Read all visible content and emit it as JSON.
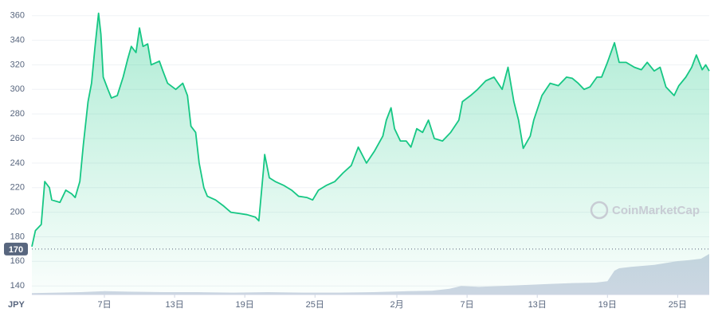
{
  "chart_data": {
    "type": "line",
    "currency": "JPY",
    "watermark": "CoinMarketCap",
    "reference_price": 170,
    "reference_label": "170",
    "grid": true,
    "ylim": [
      133,
      365
    ],
    "yticks": [
      140,
      160,
      180,
      200,
      220,
      240,
      260,
      280,
      300,
      320,
      340,
      360
    ],
    "xlim": [
      0.8,
      58.7
    ],
    "xticks": [
      {
        "value": 7,
        "label": "7日"
      },
      {
        "value": 13,
        "label": "13日"
      },
      {
        "value": 19,
        "label": "19日"
      },
      {
        "value": 25,
        "label": "25日"
      },
      {
        "value": 32,
        "label": "2月"
      },
      {
        "value": 38,
        "label": "7日"
      },
      {
        "value": 44,
        "label": "13日"
      },
      {
        "value": 50,
        "label": "19日"
      },
      {
        "value": 56,
        "label": "25日"
      }
    ],
    "x": [
      0.8,
      1.1,
      1.6,
      1.9,
      2.3,
      2.5,
      3.2,
      3.7,
      4.2,
      4.5,
      4.9,
      5.2,
      5.6,
      5.9,
      6.2,
      6.5,
      6.7,
      6.9,
      7.3,
      7.6,
      8.1,
      8.6,
      9.0,
      9.3,
      9.7,
      10.0,
      10.3,
      10.7,
      11.0,
      11.7,
      12.0,
      12.4,
      13.1,
      13.7,
      14.1,
      14.4,
      14.8,
      15.1,
      15.5,
      15.8,
      16.5,
      17.2,
      17.8,
      18.5,
      19.2,
      19.9,
      20.2,
      20.6,
      20.7,
      21.1,
      21.6,
      22.3,
      23.0,
      23.6,
      24.3,
      24.8,
      25.3,
      26.0,
      26.7,
      27.4,
      28.1,
      28.7,
      29.4,
      30.1,
      30.8,
      31.1,
      31.5,
      31.8,
      32.3,
      32.8,
      33.2,
      33.7,
      34.2,
      34.7,
      35.2,
      35.9,
      36.6,
      37.3,
      37.6,
      38.3,
      38.9,
      39.6,
      40.3,
      41.0,
      41.5,
      42.0,
      42.4,
      42.8,
      43.4,
      43.7,
      44.4,
      45.1,
      45.8,
      46.5,
      47.0,
      47.5,
      48.0,
      48.5,
      49.1,
      49.5,
      50.0,
      50.6,
      51.0,
      51.6,
      52.3,
      52.9,
      53.4,
      54.0,
      54.5,
      55.0,
      55.7,
      56.1,
      56.7,
      57.2,
      57.6,
      58.1,
      58.4,
      58.7
    ],
    "series": [
      {
        "color": "#16c784",
        "values": [
          172,
          185,
          190,
          225,
          220,
          210,
          208,
          218,
          215,
          212,
          225,
          255,
          290,
          305,
          335,
          362,
          345,
          310,
          300,
          293,
          295,
          310,
          325,
          335,
          330,
          350,
          335,
          337,
          320,
          323,
          315,
          305,
          300,
          305,
          295,
          270,
          265,
          240,
          220,
          213,
          210,
          205,
          200,
          199,
          198,
          196,
          193,
          235,
          247,
          228,
          225,
          222,
          218,
          213,
          212,
          210,
          218,
          222,
          225,
          232,
          238,
          253,
          240,
          250,
          262,
          275,
          285,
          268,
          258,
          258,
          253,
          268,
          265,
          275,
          260,
          258,
          265,
          275,
          290,
          295,
          300,
          307,
          310,
          300,
          318,
          290,
          275,
          252,
          262,
          275,
          295,
          305,
          303,
          310,
          309,
          305,
          300,
          302,
          310,
          310,
          322,
          338,
          322,
          322,
          318,
          316,
          322,
          315,
          318,
          302,
          295,
          303,
          310,
          318,
          328,
          316,
          320,
          315
        ]
      }
    ],
    "volume": {
      "color": "#cfd6e4",
      "ylim": [
        0,
        100
      ],
      "x": [
        0.8,
        3,
        5,
        7,
        9,
        12,
        15,
        18,
        21,
        24,
        27,
        30,
        33,
        35,
        36.5,
        37.5,
        39,
        41,
        43,
        45,
        47,
        49,
        50,
        50.6,
        51,
        52,
        53,
        54,
        55,
        56,
        57,
        58,
        58.7
      ],
      "values": [
        3,
        4,
        5,
        7,
        6,
        5,
        5,
        4,
        5,
        4,
        4,
        5,
        7,
        8,
        12,
        18,
        16,
        18,
        20,
        22,
        24,
        25,
        28,
        50,
        55,
        58,
        60,
        62,
        66,
        70,
        72,
        75,
        85
      ]
    }
  }
}
